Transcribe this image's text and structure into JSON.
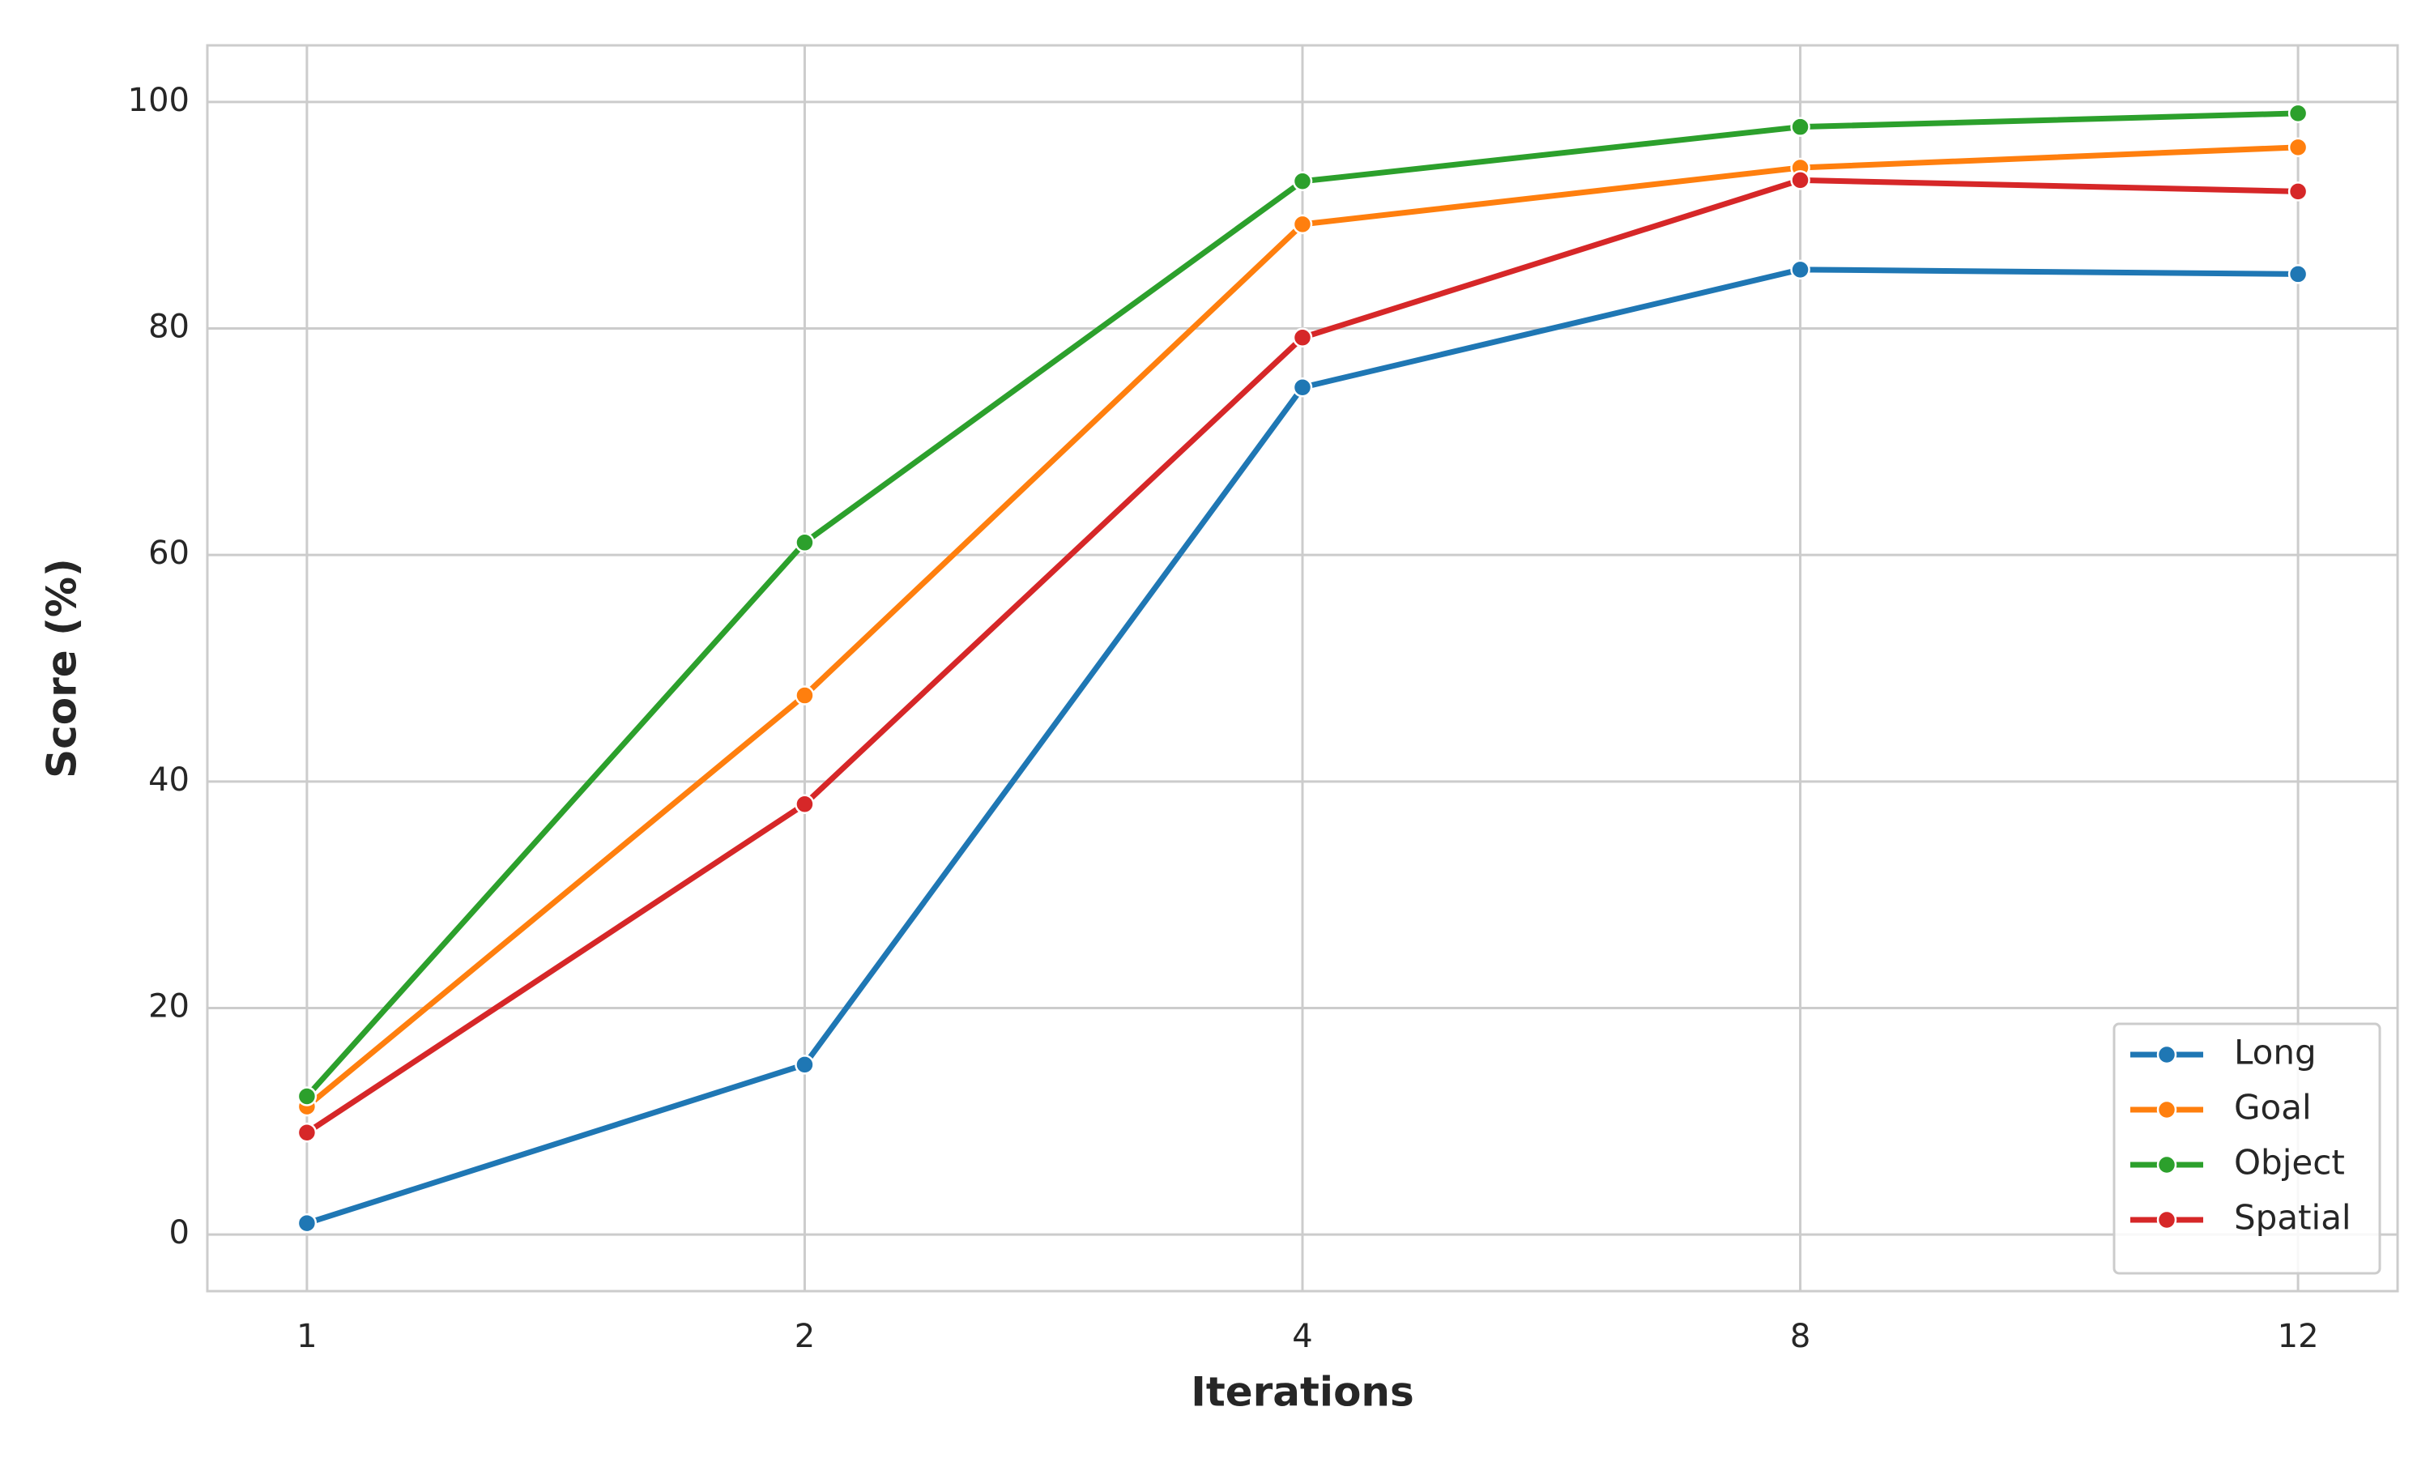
{
  "chart_data": {
    "type": "line",
    "x_label": "Iterations",
    "y_label": "Score (%)",
    "categories": [
      "1",
      "2",
      "4",
      "8",
      "12"
    ],
    "series": [
      {
        "name": "Long",
        "color": "#1f77b4",
        "values": [
          1,
          15,
          74.8,
          85.2,
          84.8
        ]
      },
      {
        "name": "Goal",
        "color": "#ff7f0e",
        "values": [
          11.3,
          47.6,
          89.2,
          94.2,
          96
        ]
      },
      {
        "name": "Object",
        "color": "#2ca02c",
        "values": [
          12.2,
          61.1,
          93,
          97.8,
          99
        ]
      },
      {
        "name": "Spatial",
        "color": "#d62728",
        "values": [
          9,
          38,
          79.2,
          93.1,
          92.1
        ]
      }
    ],
    "ylim": [
      -5,
      105
    ],
    "yticks": [
      0,
      20,
      40,
      60,
      80,
      100
    ],
    "grid": true,
    "legend": "lower right"
  }
}
